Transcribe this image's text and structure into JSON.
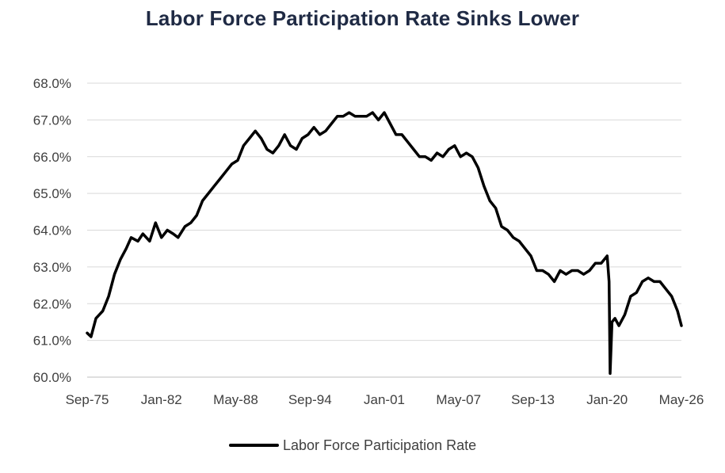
{
  "chart_data": {
    "type": "line",
    "title": "Labor Force Participation Rate Sinks Lower",
    "xlabel": "",
    "ylabel": "",
    "ylim": [
      60.0,
      68.0
    ],
    "y_ticks": [
      "60.0%",
      "61.0%",
      "62.0%",
      "63.0%",
      "64.0%",
      "65.0%",
      "66.0%",
      "67.0%",
      "68.0%"
    ],
    "x_ticks": [
      "Sep-75",
      "Jan-82",
      "May-88",
      "Sep-94",
      "Jan-01",
      "May-07",
      "Sep-13",
      "Jan-20",
      "May-26"
    ],
    "x_range": [
      "Sep-75",
      "May-26"
    ],
    "grid": "horizontal",
    "legend_position": "bottom",
    "line_color": "#000000",
    "series": [
      {
        "name": "Labor Force Participation Rate",
        "points": [
          [
            "Sep-75",
            61.2
          ],
          [
            "Jan-76",
            61.1
          ],
          [
            "Jun-76",
            61.6
          ],
          [
            "Jan-77",
            61.8
          ],
          [
            "Jul-77",
            62.2
          ],
          [
            "Jan-78",
            62.8
          ],
          [
            "Jul-78",
            63.2
          ],
          [
            "Jan-79",
            63.5
          ],
          [
            "Jun-79",
            63.8
          ],
          [
            "Jan-80",
            63.7
          ],
          [
            "Jun-80",
            63.9
          ],
          [
            "Jan-81",
            63.7
          ],
          [
            "Jul-81",
            64.2
          ],
          [
            "Jan-82",
            63.8
          ],
          [
            "Jul-82",
            64.0
          ],
          [
            "Jan-83",
            63.9
          ],
          [
            "Jun-83",
            63.8
          ],
          [
            "Jan-84",
            64.1
          ],
          [
            "Jul-84",
            64.2
          ],
          [
            "Jan-85",
            64.4
          ],
          [
            "Jul-85",
            64.8
          ],
          [
            "Jan-86",
            65.0
          ],
          [
            "Jul-86",
            65.2
          ],
          [
            "Jan-87",
            65.4
          ],
          [
            "Jul-87",
            65.6
          ],
          [
            "Jan-88",
            65.8
          ],
          [
            "Jul-88",
            65.9
          ],
          [
            "Jan-89",
            66.3
          ],
          [
            "Jul-89",
            66.5
          ],
          [
            "Jan-90",
            66.7
          ],
          [
            "Jul-90",
            66.5
          ],
          [
            "Jan-91",
            66.2
          ],
          [
            "Jul-91",
            66.1
          ],
          [
            "Jan-92",
            66.3
          ],
          [
            "Jul-92",
            66.6
          ],
          [
            "Jan-93",
            66.3
          ],
          [
            "Jul-93",
            66.2
          ],
          [
            "Jan-94",
            66.5
          ],
          [
            "Jul-94",
            66.6
          ],
          [
            "Jan-95",
            66.8
          ],
          [
            "Jul-95",
            66.6
          ],
          [
            "Jan-96",
            66.7
          ],
          [
            "Jul-96",
            66.9
          ],
          [
            "Jan-97",
            67.1
          ],
          [
            "Jul-97",
            67.1
          ],
          [
            "Jan-98",
            67.2
          ],
          [
            "Jul-98",
            67.1
          ],
          [
            "Jan-99",
            67.1
          ],
          [
            "Jul-99",
            67.1
          ],
          [
            "Jan-00",
            67.2
          ],
          [
            "Jul-00",
            67.0
          ],
          [
            "Jan-01",
            67.2
          ],
          [
            "Jul-01",
            66.9
          ],
          [
            "Jan-02",
            66.6
          ],
          [
            "Jul-02",
            66.6
          ],
          [
            "Jan-03",
            66.4
          ],
          [
            "Jul-03",
            66.2
          ],
          [
            "Jan-04",
            66.0
          ],
          [
            "Jul-04",
            66.0
          ],
          [
            "Jan-05",
            65.9
          ],
          [
            "Jul-05",
            66.1
          ],
          [
            "Jan-06",
            66.0
          ],
          [
            "Jul-06",
            66.2
          ],
          [
            "Jan-07",
            66.3
          ],
          [
            "Jul-07",
            66.0
          ],
          [
            "Jan-08",
            66.1
          ],
          [
            "Jul-08",
            66.0
          ],
          [
            "Jan-09",
            65.7
          ],
          [
            "Jul-09",
            65.2
          ],
          [
            "Jan-10",
            64.8
          ],
          [
            "Jul-10",
            64.6
          ],
          [
            "Jan-11",
            64.1
          ],
          [
            "Jul-11",
            64.0
          ],
          [
            "Jan-12",
            63.8
          ],
          [
            "Jul-12",
            63.7
          ],
          [
            "Jan-13",
            63.5
          ],
          [
            "Jul-13",
            63.3
          ],
          [
            "Jan-14",
            62.9
          ],
          [
            "Jul-14",
            62.9
          ],
          [
            "Jan-15",
            62.8
          ],
          [
            "Jul-15",
            62.6
          ],
          [
            "Jan-16",
            62.9
          ],
          [
            "Jul-16",
            62.8
          ],
          [
            "Jan-17",
            62.9
          ],
          [
            "Jul-17",
            62.9
          ],
          [
            "Jan-18",
            62.8
          ],
          [
            "Jul-18",
            62.9
          ],
          [
            "Jan-19",
            63.1
          ],
          [
            "Jul-19",
            63.1
          ],
          [
            "Jan-20",
            63.3
          ],
          [
            "Mar-20",
            62.6
          ],
          [
            "Apr-20",
            60.1
          ],
          [
            "Jun-20",
            61.5
          ],
          [
            "Sep-20",
            61.6
          ],
          [
            "Jan-21",
            61.4
          ],
          [
            "Jul-21",
            61.7
          ],
          [
            "Jan-22",
            62.2
          ],
          [
            "Jul-22",
            62.3
          ],
          [
            "Jan-23",
            62.6
          ],
          [
            "Jul-23",
            62.7
          ],
          [
            "Jan-24",
            62.6
          ],
          [
            "Jul-24",
            62.6
          ],
          [
            "Jan-25",
            62.4
          ],
          [
            "Jul-25",
            62.2
          ],
          [
            "Jan-26",
            61.8
          ],
          [
            "May-26",
            61.4
          ]
        ]
      }
    ]
  }
}
